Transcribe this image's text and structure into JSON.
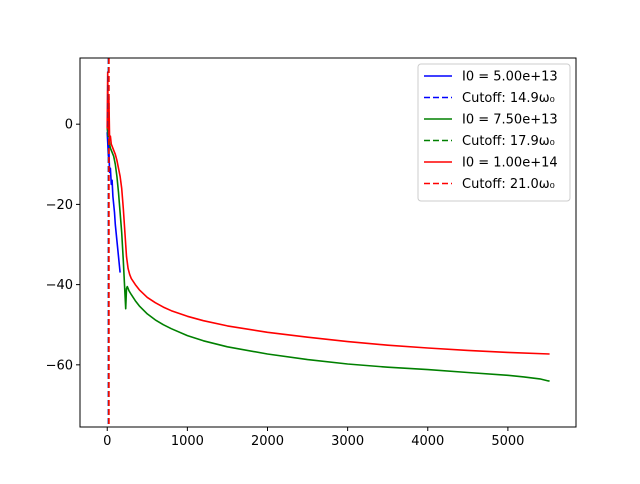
{
  "chart_data": {
    "type": "line",
    "title": "",
    "xlabel": "",
    "ylabel": "",
    "xlim": [
      -340,
      5850
    ],
    "ylim": [
      -75.5,
      16.5
    ],
    "x_ticks": [
      0,
      1000,
      2000,
      3000,
      4000,
      5000
    ],
    "y_ticks": [
      0,
      -20,
      -40,
      -60
    ],
    "grid": false,
    "legend_position": "upper right",
    "series": [
      {
        "name": "I0 = 5.00e+13",
        "color": "#0000ff",
        "style": "solid",
        "x": [
          0,
          5,
          10,
          15,
          20,
          25,
          30,
          40,
          50,
          60,
          70,
          80,
          90,
          100,
          110,
          120,
          130,
          140,
          150,
          160
        ],
        "y": [
          -2,
          -4,
          -6,
          -8,
          -5,
          -9,
          -12,
          -11,
          -15,
          -14,
          -18,
          -20,
          -22,
          -25,
          -27,
          -29,
          -31,
          -33,
          -35,
          -37
        ]
      },
      {
        "name": "Cutoff: 14.9ω₀",
        "color": "#0000ff",
        "style": "dashed",
        "vline": 14.9
      },
      {
        "name": "I0 = 7.50e+13",
        "color": "#008000",
        "style": "solid",
        "x": [
          0,
          10,
          20,
          30,
          40,
          60,
          80,
          100,
          120,
          140,
          160,
          180,
          200,
          210,
          220,
          230,
          240,
          250,
          270,
          300,
          350,
          400,
          500,
          600,
          700,
          800,
          1000,
          1200,
          1500,
          2000,
          2500,
          3000,
          3500,
          4000,
          4500,
          5000,
          5200,
          5400,
          5500,
          5520
        ],
        "y": [
          -1,
          -3,
          -2,
          -5,
          -6,
          -7,
          -8,
          -10,
          -13,
          -17,
          -22,
          -27,
          -34,
          -38,
          -42,
          -46,
          -41,
          -40.5,
          -41.5,
          -42.5,
          -44,
          -45.3,
          -47.3,
          -48.8,
          -50,
          -51,
          -52.7,
          -54,
          -55.5,
          -57.3,
          -58.7,
          -59.8,
          -60.6,
          -61.2,
          -61.9,
          -62.6,
          -63,
          -63.5,
          -64,
          -64
        ]
      },
      {
        "name": "Cutoff: 17.9ω₀",
        "color": "#008000",
        "style": "dashed",
        "vline": 17.9
      },
      {
        "name": "I0 = 1.00e+14",
        "color": "#ff0000",
        "style": "solid",
        "x": [
          0,
          3,
          6,
          10,
          15,
          20,
          25,
          30,
          40,
          50,
          60,
          80,
          100,
          120,
          140,
          160,
          180,
          200,
          220,
          240,
          260,
          280,
          300,
          350,
          400,
          500,
          600,
          700,
          800,
          1000,
          1200,
          1500,
          2000,
          2500,
          3000,
          3500,
          4000,
          4500,
          5000,
          5520
        ],
        "y": [
          -1,
          8,
          13,
          5,
          -2,
          7,
          2,
          -4,
          -3,
          -5,
          -5.5,
          -6.5,
          -7.5,
          -9,
          -11,
          -13,
          -16,
          -21,
          -27,
          -33,
          -36,
          -37.5,
          -38.5,
          -40,
          -41.3,
          -43.2,
          -44.5,
          -45.6,
          -46.5,
          -47.9,
          -49,
          -50.3,
          -51.9,
          -53.1,
          -54.2,
          -55.1,
          -55.8,
          -56.4,
          -56.9,
          -57.3
        ]
      },
      {
        "name": "Cutoff: 21.0ω₀",
        "color": "#ff0000",
        "style": "dashed",
        "vline": 21.0
      }
    ]
  }
}
